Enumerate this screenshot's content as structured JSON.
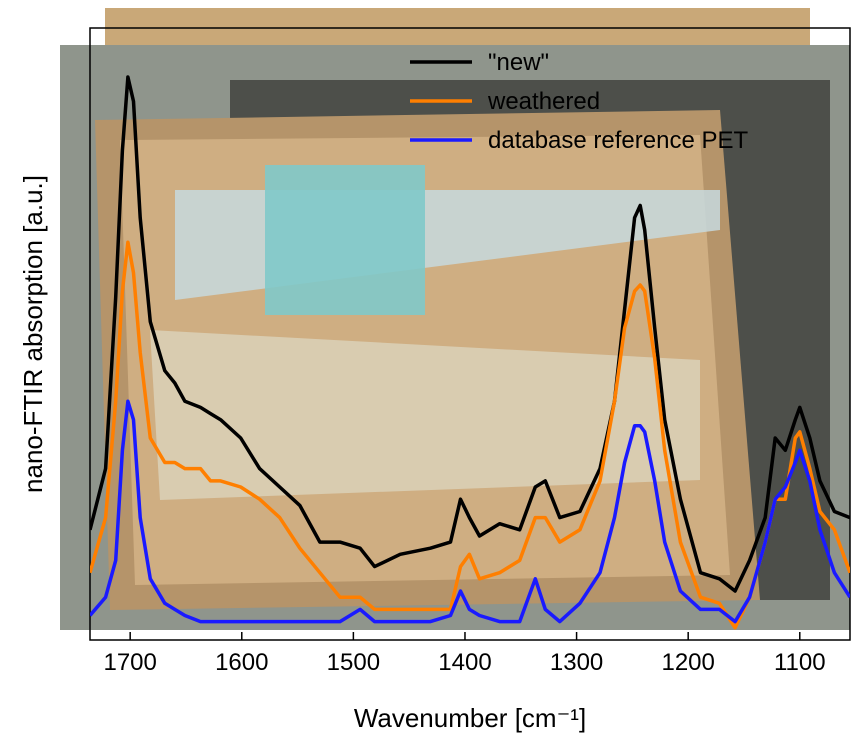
{
  "chart_data": {
    "type": "line",
    "x_label": "Wavenumber [cm⁻¹]",
    "y_label": "nano-FTIR absorption [a.u.]",
    "x": [
      1736,
      1722,
      1713,
      1707,
      1702,
      1697,
      1691,
      1682,
      1669,
      1660,
      1651,
      1637,
      1628,
      1619,
      1601,
      1584,
      1566,
      1548,
      1530,
      1512,
      1494,
      1481,
      1458,
      1431,
      1413,
      1404,
      1396,
      1387,
      1369,
      1351,
      1337,
      1328,
      1315,
      1297,
      1279,
      1266,
      1257,
      1248,
      1243,
      1239,
      1230,
      1221,
      1207,
      1189,
      1172,
      1158,
      1145,
      1131,
      1122,
      1113,
      1104,
      1100,
      1091,
      1082,
      1069,
      1055
    ],
    "series": [
      {
        "name": "\"new\"",
        "color": "#000000",
        "values": [
          0.18,
          0.28,
          0.56,
          0.8,
          0.92,
          0.88,
          0.69,
          0.52,
          0.44,
          0.42,
          0.39,
          0.38,
          0.37,
          0.36,
          0.33,
          0.28,
          0.25,
          0.22,
          0.16,
          0.16,
          0.15,
          0.12,
          0.14,
          0.15,
          0.16,
          0.23,
          0.2,
          0.17,
          0.19,
          0.18,
          0.25,
          0.26,
          0.2,
          0.21,
          0.28,
          0.39,
          0.54,
          0.69,
          0.71,
          0.67,
          0.51,
          0.36,
          0.23,
          0.11,
          0.1,
          0.08,
          0.13,
          0.2,
          0.33,
          0.31,
          0.36,
          0.38,
          0.33,
          0.26,
          0.21,
          0.2
        ]
      },
      {
        "name": "weathered",
        "color": "#ff7f00",
        "values": [
          0.11,
          0.2,
          0.39,
          0.57,
          0.65,
          0.6,
          0.47,
          0.33,
          0.29,
          0.29,
          0.28,
          0.28,
          0.26,
          0.26,
          0.25,
          0.23,
          0.2,
          0.15,
          0.11,
          0.07,
          0.07,
          0.05,
          0.05,
          0.05,
          0.05,
          0.12,
          0.14,
          0.1,
          0.11,
          0.13,
          0.2,
          0.2,
          0.16,
          0.18,
          0.26,
          0.39,
          0.51,
          0.57,
          0.58,
          0.57,
          0.46,
          0.31,
          0.16,
          0.07,
          0.06,
          0.02,
          0.07,
          0.16,
          0.23,
          0.23,
          0.33,
          0.34,
          0.28,
          0.21,
          0.18,
          0.11
        ]
      },
      {
        "name": "database reference PET",
        "color": "#1a1aff",
        "values": [
          0.04,
          0.07,
          0.13,
          0.31,
          0.39,
          0.36,
          0.2,
          0.1,
          0.06,
          0.05,
          0.04,
          0.03,
          0.03,
          0.03,
          0.03,
          0.03,
          0.03,
          0.03,
          0.03,
          0.03,
          0.05,
          0.03,
          0.03,
          0.03,
          0.04,
          0.08,
          0.05,
          0.04,
          0.03,
          0.03,
          0.1,
          0.05,
          0.03,
          0.06,
          0.11,
          0.2,
          0.29,
          0.35,
          0.35,
          0.34,
          0.26,
          0.16,
          0.08,
          0.05,
          0.05,
          0.03,
          0.07,
          0.16,
          0.23,
          0.25,
          0.29,
          0.31,
          0.26,
          0.18,
          0.11,
          0.07
        ]
      }
    ],
    "xlim": [
      1736,
      1055
    ],
    "ylim": [
      0,
      1
    ],
    "xticks": [
      1700,
      1600,
      1500,
      1400,
      1300,
      1200,
      1100
    ],
    "legend": "top-right"
  }
}
